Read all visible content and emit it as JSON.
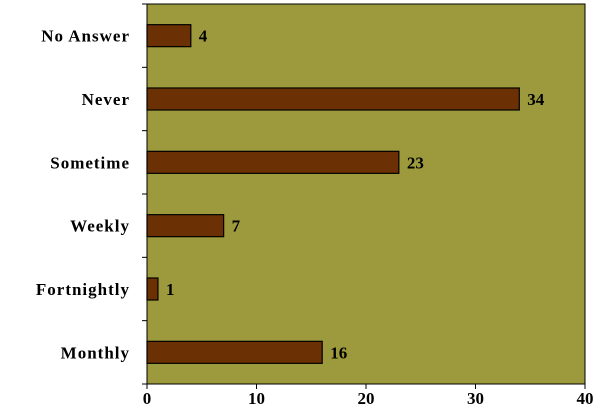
{
  "chart_data": {
    "type": "bar",
    "orientation": "horizontal",
    "categories": [
      "No Answer",
      "Never",
      "Sometime",
      "Weekly",
      "Fortnightly",
      "Monthly"
    ],
    "values": [
      4,
      34,
      23,
      7,
      1,
      16
    ],
    "data_labels": [
      "4",
      "34",
      "23",
      "7",
      "1",
      "16"
    ],
    "title": "",
    "xlabel": "",
    "ylabel": "",
    "xlim": [
      0,
      40
    ],
    "x_ticks": [
      "0",
      "10",
      "20",
      "30",
      "40"
    ],
    "grid": false,
    "legend": "none",
    "colors": {
      "plot_background": "#9C9A3C",
      "bar_fill": "#6B3104",
      "bar_stroke": "#000000",
      "axis": "#000000"
    }
  }
}
